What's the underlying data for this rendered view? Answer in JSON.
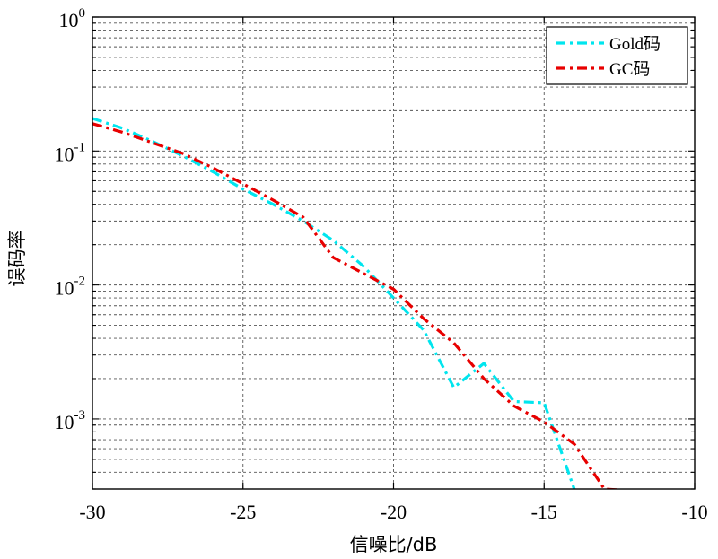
{
  "chart_data": {
    "type": "line",
    "xlabel": "信噪比/dB",
    "ylabel": "误码率",
    "xlim": [
      -30,
      -10
    ],
    "ylim": [
      0.0003,
      1
    ],
    "yscale": "log",
    "grid": true,
    "legend_position": "top-right",
    "x_ticks": [
      -30,
      -25,
      -20,
      -15,
      -10
    ],
    "x_tick_labels": [
      "-30",
      "-25",
      "-20",
      "-15",
      "-10"
    ],
    "y_tick_labels": [
      {
        "base": "10",
        "exp": "0"
      },
      {
        "base": "10",
        "exp": "-1"
      },
      {
        "base": "10",
        "exp": "-2"
      },
      {
        "base": "10",
        "exp": "-3"
      }
    ],
    "series": [
      {
        "name": "Gold码",
        "color": "#00e5ee",
        "points": [
          [
            -30,
            0.175
          ],
          [
            -29,
            0.148
          ],
          [
            -28,
            0.118
          ],
          [
            -27,
            0.092
          ],
          [
            -26,
            0.07
          ],
          [
            -25,
            0.052
          ],
          [
            -24,
            0.04
          ],
          [
            -23,
            0.03
          ],
          [
            -22,
            0.0215
          ],
          [
            -21,
            0.0138
          ],
          [
            -20,
            0.008
          ],
          [
            -19,
            0.0046
          ],
          [
            -18,
            0.00172
          ],
          [
            -17,
            0.0026
          ],
          [
            -16,
            0.00135
          ],
          [
            -15,
            0.00132
          ],
          [
            -14,
            0.0003
          ]
        ]
      },
      {
        "name": "GC码",
        "color": "#e80000",
        "points": [
          [
            -30,
            0.16
          ],
          [
            -29,
            0.138
          ],
          [
            -28,
            0.115
          ],
          [
            -27,
            0.096
          ],
          [
            -26,
            0.075
          ],
          [
            -25,
            0.057
          ],
          [
            -24,
            0.043
          ],
          [
            -23,
            0.032
          ],
          [
            -22,
            0.016
          ],
          [
            -21,
            0.0122
          ],
          [
            -20,
            0.0093
          ],
          [
            -19,
            0.0056
          ],
          [
            -18,
            0.0037
          ],
          [
            -17,
            0.002
          ],
          [
            -16,
            0.00125
          ],
          [
            -15,
            0.00095
          ],
          [
            -14,
            0.00065
          ],
          [
            -13,
            0.0003
          ],
          [
            -12,
            0.00029
          ]
        ]
      }
    ]
  }
}
